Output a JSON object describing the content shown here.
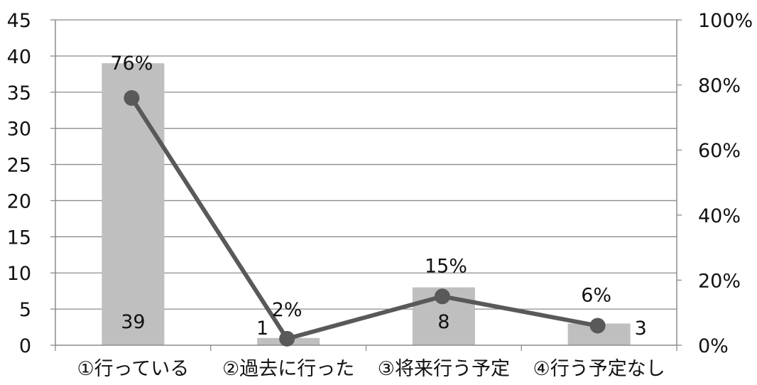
{
  "chart_data": {
    "type": "bar",
    "categories": [
      "①行っている",
      "②過去に行った",
      "③将来行う予定",
      "④行う予定なし"
    ],
    "series": [
      {
        "type": "bar",
        "axis": "left",
        "values": [
          39,
          1,
          8,
          3
        ],
        "color": "#bfbfbf",
        "value_labels": [
          "39",
          "1",
          "8",
          "3"
        ]
      },
      {
        "type": "line",
        "axis": "right",
        "values": [
          76,
          2,
          15,
          6
        ],
        "color": "#595959",
        "value_labels": [
          "76%",
          "2%",
          "15%",
          "6%"
        ]
      }
    ],
    "y_left": {
      "range": [
        0,
        45
      ],
      "ticks": [
        "0",
        "5",
        "10",
        "15",
        "20",
        "25",
        "30",
        "35",
        "40",
        "45"
      ]
    },
    "y_right": {
      "range": [
        0,
        100
      ],
      "ticks": [
        "0%",
        "20%",
        "40%",
        "60%",
        "80%",
        "100%"
      ]
    },
    "grid": true,
    "legend": false
  }
}
